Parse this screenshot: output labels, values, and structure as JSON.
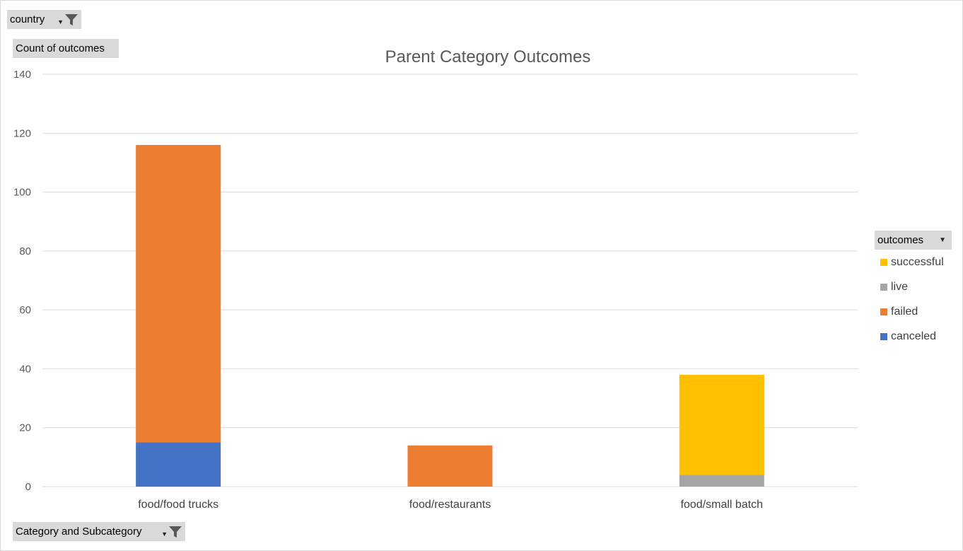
{
  "filters": {
    "country_label": "country",
    "values_label": "Count of outcomes",
    "category_label": "Category and Subcategory"
  },
  "legend": {
    "title": "outcomes",
    "items": [
      {
        "label": "successful",
        "color": "#FFC000"
      },
      {
        "label": "live",
        "color": "#A5A5A5"
      },
      {
        "label": "failed",
        "color": "#ED7D31"
      },
      {
        "label": "canceled",
        "color": "#4472C4"
      }
    ]
  },
  "chart_data": {
    "type": "bar",
    "stacked": true,
    "title": "Parent Category Outcomes",
    "xlabel": "",
    "ylabel": "",
    "ylim": [
      0,
      140
    ],
    "yticks": [
      0,
      20,
      40,
      60,
      80,
      100,
      120,
      140
    ],
    "grid": true,
    "legend_position": "right",
    "categories": [
      "food/food trucks",
      "food/restaurants",
      "food/small batch"
    ],
    "series": [
      {
        "name": "canceled",
        "color": "#4472C4",
        "values": [
          15,
          0,
          0
        ]
      },
      {
        "name": "failed",
        "color": "#ED7D31",
        "values": [
          101,
          14,
          0
        ]
      },
      {
        "name": "live",
        "color": "#A5A5A5",
        "values": [
          0,
          0,
          4
        ]
      },
      {
        "name": "successful",
        "color": "#FFC000",
        "values": [
          0,
          0,
          34
        ]
      }
    ]
  }
}
